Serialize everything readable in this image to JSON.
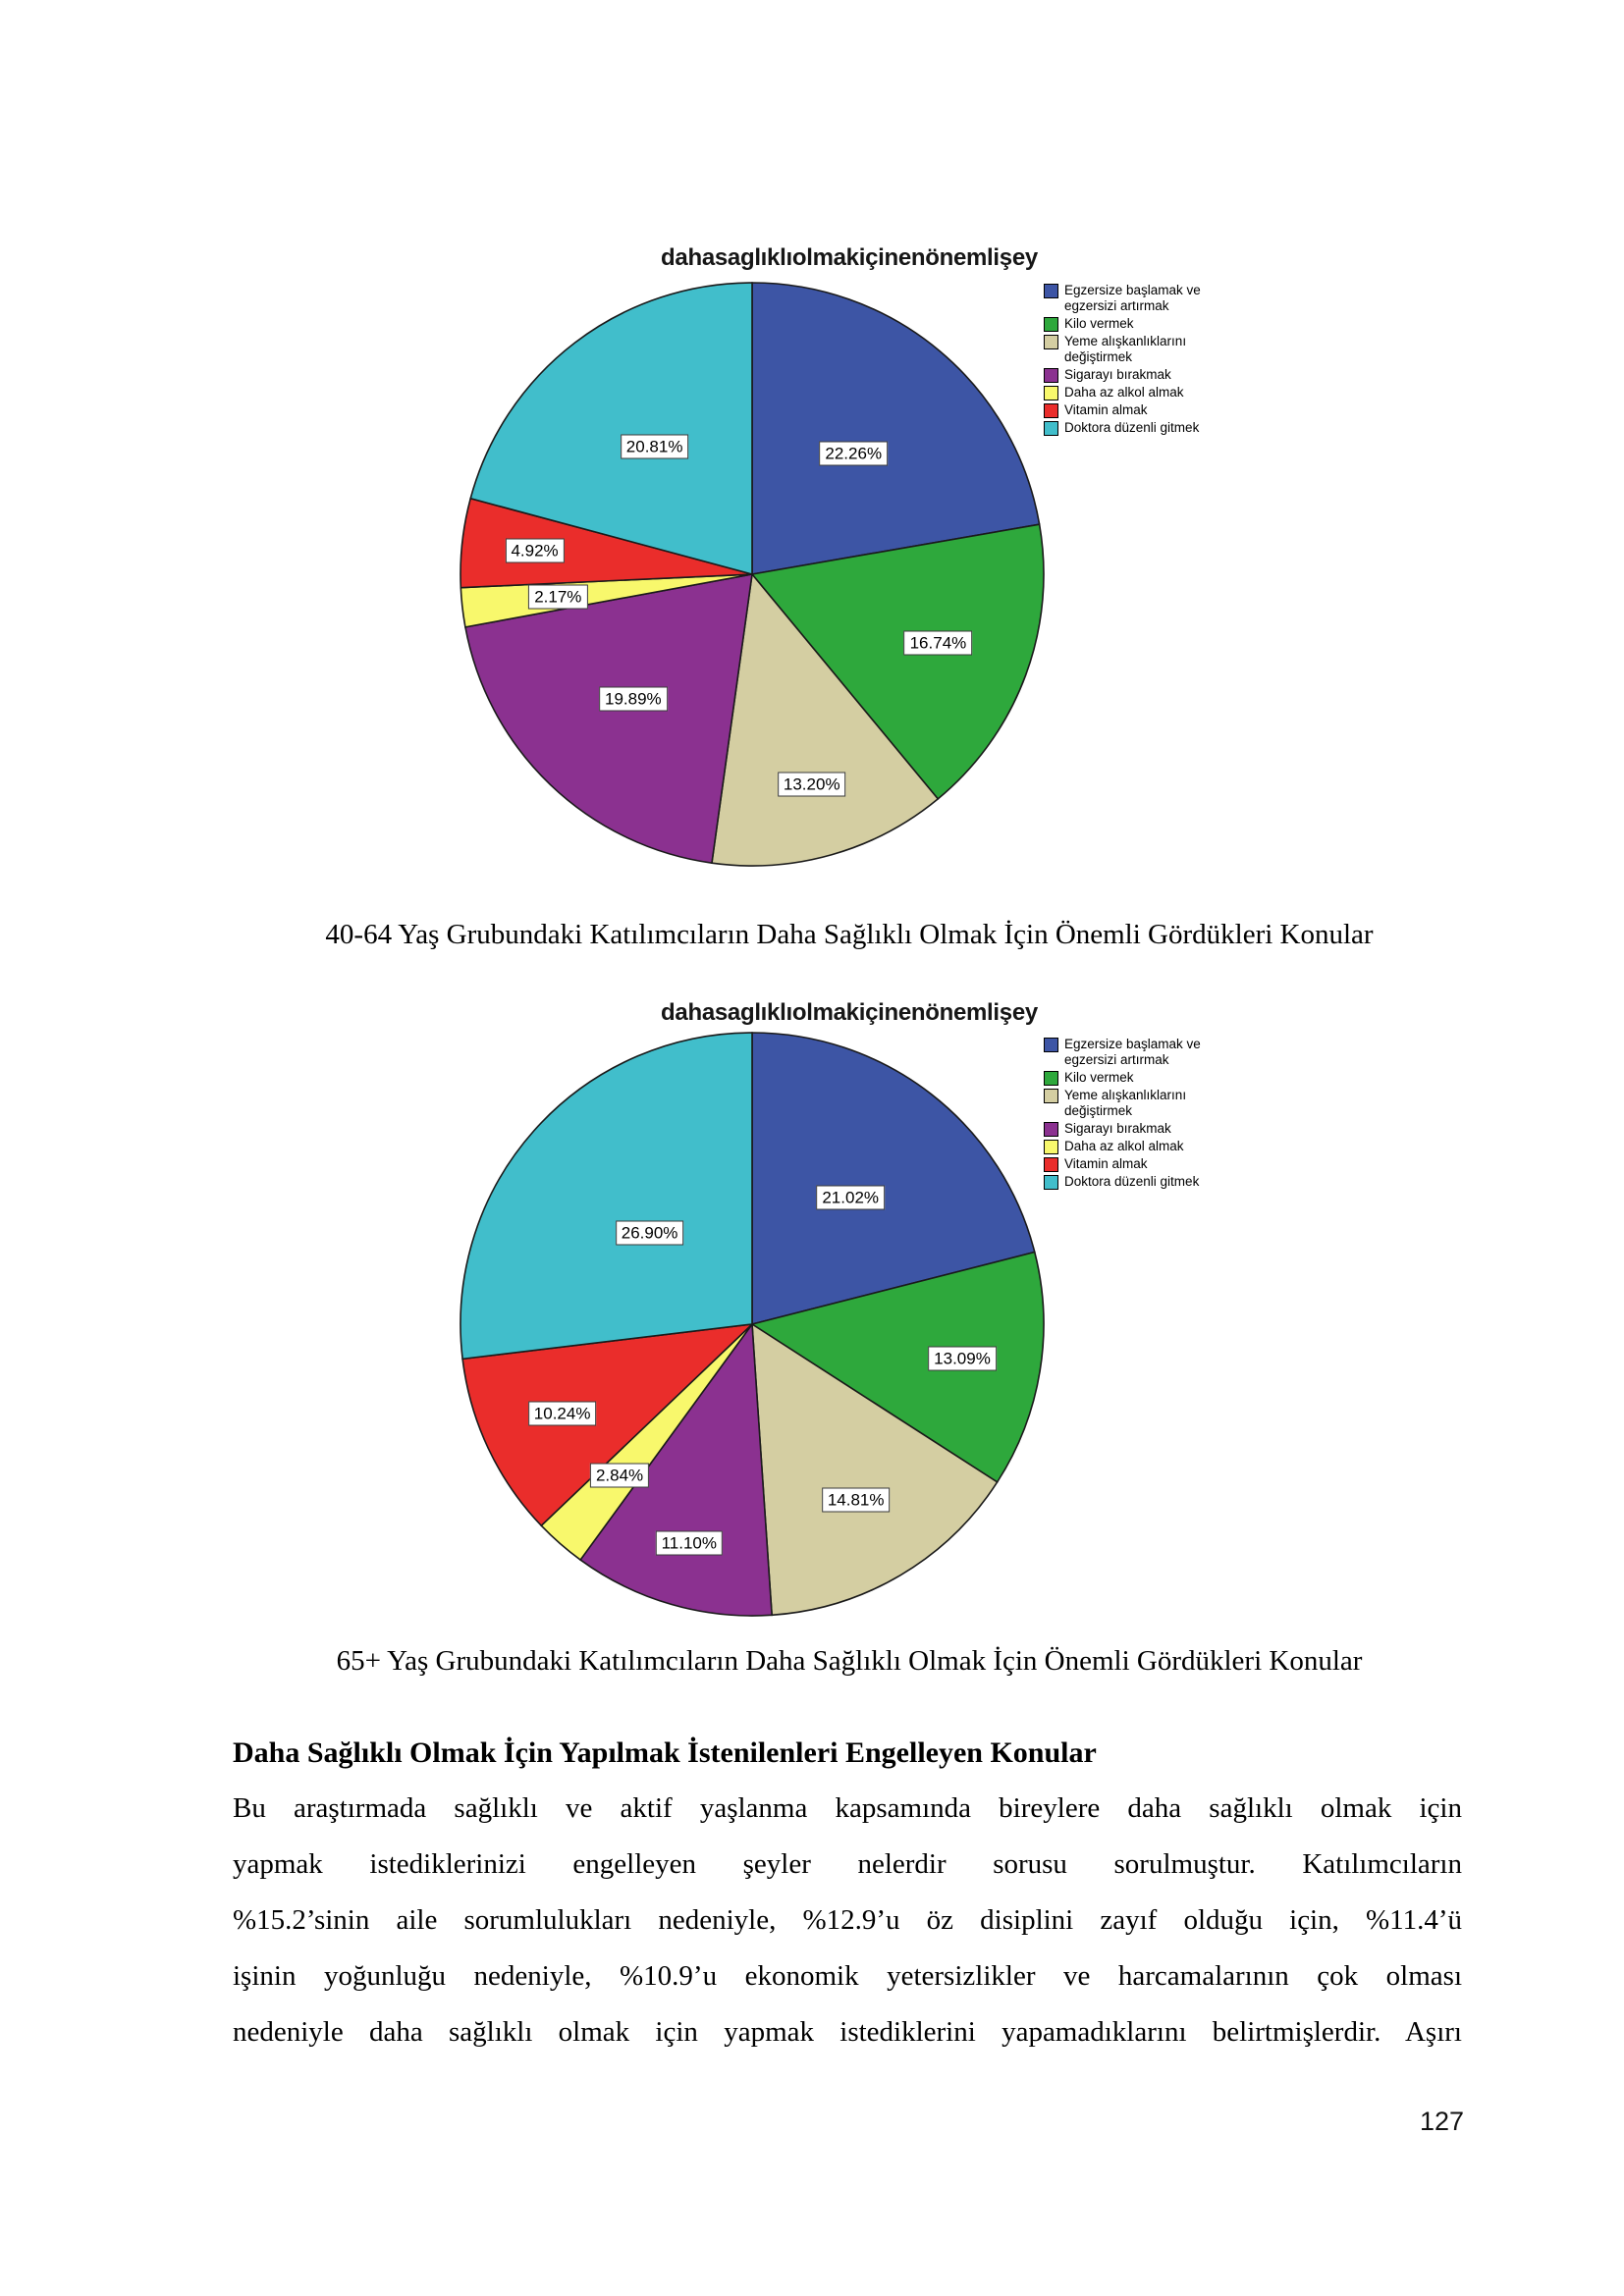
{
  "chart_data": [
    {
      "type": "pie",
      "title": "dahasaglıklıolmakiçinenönemlişey",
      "legend_position": "right",
      "start_angle_deg": 0,
      "direction": "clockwise",
      "slices": [
        {
          "label": "Egzersize başlamak ve egzersizi artırmak",
          "value": 22.26,
          "display": "22.26%",
          "color": "#3D55A5",
          "label_r": 0.54
        },
        {
          "label": "Kilo vermek",
          "value": 16.74,
          "display": "16.74%",
          "color": "#2EA83C",
          "label_r": 0.68
        },
        {
          "label": "Yeme alışkanlıklarını değiştirmek",
          "value": 13.2,
          "display": "13.20%",
          "color": "#D4CEA2",
          "label_r": 0.75
        },
        {
          "label": "Sigarayı bırakmak",
          "value": 19.89,
          "display": "19.89%",
          "color": "#8B3190",
          "label_r": 0.59
        },
        {
          "label": "Daha az alkol almak",
          "value": 2.17,
          "display": "2.17%",
          "color": "#F8F86C",
          "label_r": 0.67
        },
        {
          "label": "Vitamin almak",
          "value": 4.92,
          "display": "4.92%",
          "color": "#EA2D2B",
          "label_r": 0.75
        },
        {
          "label": "Doktora düzenli gitmek",
          "value": 20.81,
          "display": "20.81%",
          "color": "#41BECB",
          "label_r": 0.55
        }
      ]
    },
    {
      "type": "pie",
      "title": "dahasaglıklıolmakiçinenönemlişey",
      "legend_position": "right",
      "start_angle_deg": 0,
      "direction": "clockwise",
      "slices": [
        {
          "label": "Egzersize başlamak ve egzersizi artırmak",
          "value": 21.02,
          "display": "21.02%",
          "color": "#3D55A5",
          "label_r": 0.55
        },
        {
          "label": "Kilo vermek",
          "value": 13.09,
          "display": "13.09%",
          "color": "#2EA83C",
          "label_r": 0.73
        },
        {
          "label": "Yeme alışkanlıklarını değiştirmek",
          "value": 14.81,
          "display": "14.81%",
          "color": "#D4CEA2",
          "label_r": 0.7
        },
        {
          "label": "Sigarayı bırakmak",
          "value": 11.1,
          "display": "11.10%",
          "color": "#8B3190",
          "label_r": 0.78
        },
        {
          "label": "Daha az alkol almak",
          "value": 2.84,
          "display": "2.84%",
          "color": "#F8F86C",
          "label_r": 0.69
        },
        {
          "label": "Vitamin almak",
          "value": 10.24,
          "display": "10.24%",
          "color": "#EA2D2B",
          "label_r": 0.72
        },
        {
          "label": "Doktora düzenli gitmek",
          "value": 26.9,
          "display": "26.90%",
          "color": "#41BECB",
          "label_r": 0.47
        }
      ]
    }
  ],
  "figures": [
    {
      "caption": "40-64 Yaş Grubundaki Katılımcıların Daha Sağlıklı Olmak İçin Önemli Gördükleri Konular"
    },
    {
      "caption": "65+ Yaş Grubundaki Katılımcıların Daha Sağlıklı Olmak İçin Önemli Gördükleri Konular"
    }
  ],
  "section": {
    "heading": "Daha Sağlıklı Olmak İçin Yapılmak İstenilenleri Engelleyen Konular",
    "body_lines": [
      "Bu araştırmada sağlıklı ve aktif yaşlanma kapsamında bireylere daha sağlıklı olmak için",
      "yapmak istediklerinizi engelleyen şeyler nelerdir sorusu sorulmuştur. Katılımcıların",
      "%15.2’sinin aile sorumlulukları nedeniyle, %12.9’u öz disiplini zayıf olduğu için, %11.4’ü",
      "işinin yoğunluğu nedeniyle, %10.9’u ekonomik yetersizlikler ve harcamalarının çok olması",
      "nedeniyle daha sağlıklı olmak için yapmak istediklerini yapamadıklarını belirtmişlerdir. Aşırı"
    ]
  },
  "page_number": "127"
}
